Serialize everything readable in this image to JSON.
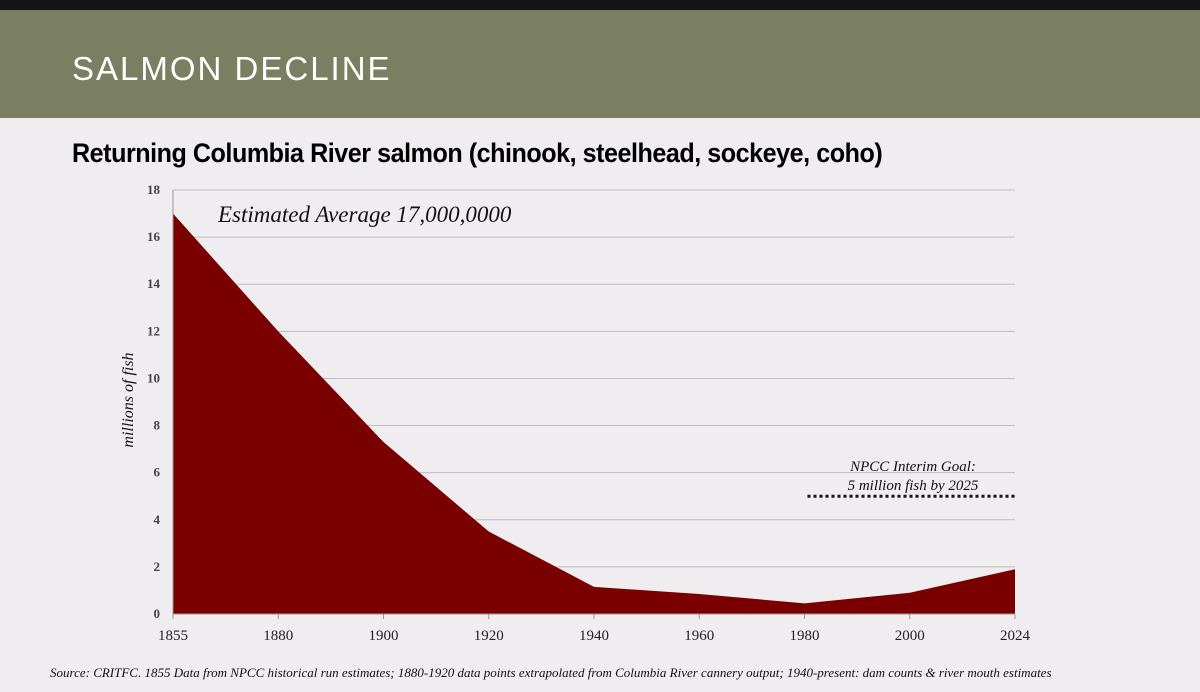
{
  "header": {
    "title": "SALMON DECLINE"
  },
  "chart_title": "Returning Columbia River salmon (chinook, steelhead, sockeye, coho)",
  "source": "Source: CRITFC. 1855 Data from NPCC historical run estimates; 1880-1920 data points extrapolated from Columbia River cannery output; 1940-present: dam counts & river mouth estimates",
  "colors": {
    "header": "#7a7f62",
    "area": "#7a0000",
    "grid": "#bdbdbd",
    "background": "#efedf0"
  },
  "chart_data": {
    "type": "area",
    "x_categories": [
      "1855",
      "1880",
      "1900",
      "1920",
      "1940",
      "1960",
      "1980",
      "2000",
      "2024"
    ],
    "series": [
      {
        "values": [
          17,
          12,
          7.3,
          3.5,
          1.15,
          0.85,
          0.45,
          0.9,
          1.9
        ]
      }
    ],
    "ylabel": "millions of fish",
    "ylim": [
      0,
      18
    ],
    "yticks": [
      0,
      2,
      4,
      6,
      8,
      10,
      12,
      14,
      16,
      18
    ],
    "grid": true,
    "annotations": [
      {
        "text": "Estimated Average 17,000,0000"
      },
      {
        "lines": [
          "NPCC Interim Goal:",
          "5 million fish by 2025"
        ],
        "y": 5,
        "x_from": "1980",
        "x_to": "2024"
      }
    ]
  }
}
